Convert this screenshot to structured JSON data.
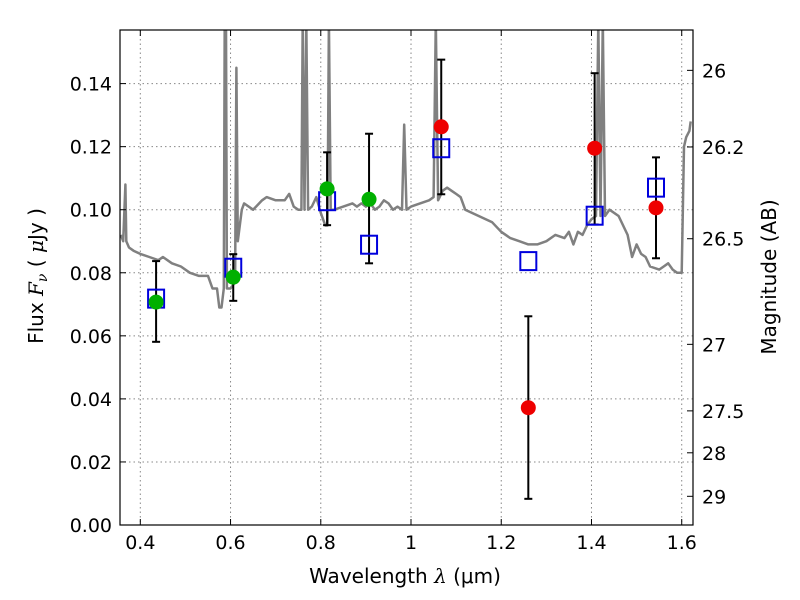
{
  "chart_data": {
    "type": "scatter",
    "title": "",
    "xlabel": "Wavelength  λ (μm)",
    "xlabel_parts": {
      "text": "Wavelength  ",
      "symbol": "λ",
      "unit": " (μm)"
    },
    "ylabel": "Flux  Fν  ( μJy )",
    "ylabel_parts": {
      "text": "Flux  ",
      "symbol": "F",
      "subscript": "ν",
      "paren_open": "  (  ",
      "mu": "μ",
      "unit": "Jy )"
    },
    "ylabel_right": "Magnitude (AB)",
    "xlim": [
      0.355,
      1.625
    ],
    "ylim": [
      0.0,
      0.157
    ],
    "grid": true,
    "x_ticks": [
      0.4,
      0.6,
      0.8,
      1.0,
      1.2,
      1.4,
      1.6
    ],
    "x_tick_labels": [
      "0.4",
      "0.6",
      "0.8",
      "1",
      "1.2",
      "1.4",
      "1.6"
    ],
    "y_ticks": [
      0.0,
      0.02,
      0.04,
      0.06,
      0.08,
      0.1,
      0.12,
      0.14
    ],
    "y_tick_labels": [
      "0.00",
      "0.02",
      "0.04",
      "0.06",
      "0.08",
      "0.10",
      "0.12",
      "0.14"
    ],
    "right_ticks": [
      {
        "flux": 0.1442,
        "label": "26"
      },
      {
        "flux": 0.1199,
        "label": "26.2"
      },
      {
        "flux": 0.0908,
        "label": "26.5"
      },
      {
        "flux": 0.0573,
        "label": "27"
      },
      {
        "flux": 0.0362,
        "label": "27.5"
      },
      {
        "flux": 0.0229,
        "label": "28"
      },
      {
        "flux": 0.0091,
        "label": "29"
      }
    ],
    "colors": {
      "model": "#808080",
      "green": "#00b000",
      "red": "#ee0000",
      "blue": "#0000dd",
      "error": "#000000",
      "grid": "#888888"
    },
    "series": [
      {
        "name": "model SED",
        "kind": "line",
        "points": [
          [
            0.357,
            0.092
          ],
          [
            0.362,
            0.09
          ],
          [
            0.367,
            0.108
          ],
          [
            0.369,
            0.09
          ],
          [
            0.375,
            0.088
          ],
          [
            0.385,
            0.087
          ],
          [
            0.4,
            0.086
          ],
          [
            0.42,
            0.085
          ],
          [
            0.44,
            0.084
          ],
          [
            0.45,
            0.085
          ],
          [
            0.47,
            0.083
          ],
          [
            0.49,
            0.082
          ],
          [
            0.51,
            0.08
          ],
          [
            0.53,
            0.079
          ],
          [
            0.55,
            0.079
          ],
          [
            0.56,
            0.075
          ],
          [
            0.57,
            0.075
          ],
          [
            0.575,
            0.069
          ],
          [
            0.58,
            0.069
          ],
          [
            0.585,
            0.075
          ],
          [
            0.587,
            0.16
          ],
          [
            0.59,
            0.16
          ],
          [
            0.592,
            0.075
          ],
          [
            0.6,
            0.075
          ],
          [
            0.61,
            0.077
          ],
          [
            0.613,
            0.145
          ],
          [
            0.616,
            0.09
          ],
          [
            0.625,
            0.1
          ],
          [
            0.63,
            0.102
          ],
          [
            0.65,
            0.1
          ],
          [
            0.67,
            0.103
          ],
          [
            0.68,
            0.104
          ],
          [
            0.7,
            0.103
          ],
          [
            0.72,
            0.103
          ],
          [
            0.73,
            0.105
          ],
          [
            0.74,
            0.101
          ],
          [
            0.75,
            0.1
          ],
          [
            0.757,
            0.1
          ],
          [
            0.76,
            0.16
          ],
          [
            0.764,
            0.1
          ],
          [
            0.768,
            0.16
          ],
          [
            0.772,
            0.1
          ],
          [
            0.78,
            0.101
          ],
          [
            0.79,
            0.104
          ],
          [
            0.8,
            0.099
          ],
          [
            0.81,
            0.095
          ],
          [
            0.815,
            0.095
          ],
          [
            0.818,
            0.16
          ],
          [
            0.822,
            0.1
          ],
          [
            0.83,
            0.1
          ],
          [
            0.85,
            0.101
          ],
          [
            0.87,
            0.102
          ],
          [
            0.88,
            0.101
          ],
          [
            0.89,
            0.102
          ],
          [
            0.9,
            0.101
          ],
          [
            0.91,
            0.102
          ],
          [
            0.92,
            0.1
          ],
          [
            0.93,
            0.101
          ],
          [
            0.94,
            0.103
          ],
          [
            0.95,
            0.102
          ],
          [
            0.96,
            0.1
          ],
          [
            0.97,
            0.101
          ],
          [
            0.98,
            0.1
          ],
          [
            0.985,
            0.127
          ],
          [
            0.99,
            0.1
          ],
          [
            1.0,
            0.101
          ],
          [
            1.02,
            0.102
          ],
          [
            1.04,
            0.103
          ],
          [
            1.05,
            0.104
          ],
          [
            1.055,
            0.16
          ],
          [
            1.06,
            0.103
          ],
          [
            1.07,
            0.106
          ],
          [
            1.08,
            0.107
          ],
          [
            1.09,
            0.106
          ],
          [
            1.1,
            0.105
          ],
          [
            1.11,
            0.104
          ],
          [
            1.12,
            0.1
          ],
          [
            1.15,
            0.098
          ],
          [
            1.18,
            0.096
          ],
          [
            1.2,
            0.093
          ],
          [
            1.22,
            0.091
          ],
          [
            1.24,
            0.09
          ],
          [
            1.26,
            0.089
          ],
          [
            1.28,
            0.089
          ],
          [
            1.3,
            0.09
          ],
          [
            1.32,
            0.092
          ],
          [
            1.34,
            0.091
          ],
          [
            1.35,
            0.093
          ],
          [
            1.36,
            0.089
          ],
          [
            1.37,
            0.093
          ],
          [
            1.38,
            0.092
          ],
          [
            1.39,
            0.095
          ],
          [
            1.4,
            0.097
          ],
          [
            1.41,
            0.098
          ],
          [
            1.415,
            0.16
          ],
          [
            1.42,
            0.098
          ],
          [
            1.425,
            0.16
          ],
          [
            1.43,
            0.098
          ],
          [
            1.44,
            0.1
          ],
          [
            1.46,
            0.098
          ],
          [
            1.48,
            0.092
          ],
          [
            1.49,
            0.085
          ],
          [
            1.5,
            0.089
          ],
          [
            1.51,
            0.086
          ],
          [
            1.52,
            0.085
          ],
          [
            1.53,
            0.082
          ],
          [
            1.55,
            0.081
          ],
          [
            1.56,
            0.082
          ],
          [
            1.57,
            0.083
          ],
          [
            1.58,
            0.081
          ],
          [
            1.59,
            0.08
          ],
          [
            1.6,
            0.08
          ],
          [
            1.605,
            0.12
          ],
          [
            1.61,
            0.123
          ],
          [
            1.617,
            0.125
          ],
          [
            1.62,
            0.128
          ]
        ]
      },
      {
        "name": "green circles",
        "kind": "circle",
        "color": "green",
        "points": [
          [
            0.435,
            0.0707
          ],
          [
            0.606,
            0.0786
          ],
          [
            0.814,
            0.1066
          ],
          [
            0.907,
            0.1033
          ]
        ]
      },
      {
        "name": "red circles",
        "kind": "circle",
        "color": "red",
        "points": [
          [
            1.067,
            0.1263
          ],
          [
            1.26,
            0.0372
          ],
          [
            1.407,
            0.1195
          ],
          [
            1.543,
            0.1006
          ]
        ]
      },
      {
        "name": "blue squares",
        "kind": "square",
        "color": "blue",
        "points": [
          [
            0.435,
            0.0718
          ],
          [
            0.606,
            0.0816
          ],
          [
            0.814,
            0.1027
          ],
          [
            0.907,
            0.0889
          ],
          [
            1.067,
            0.1195
          ],
          [
            1.26,
            0.0837
          ],
          [
            1.407,
            0.0981
          ],
          [
            1.543,
            0.107
          ]
        ]
      },
      {
        "name": "error bars",
        "kind": "errorbar",
        "bars": [
          [
            0.435,
            0.0581,
            0.0837
          ],
          [
            0.606,
            0.0711,
            0.0859
          ],
          [
            0.814,
            0.0951,
            0.1182
          ],
          [
            0.907,
            0.083,
            0.1241
          ],
          [
            1.067,
            0.1049,
            0.1476
          ],
          [
            1.26,
            0.0083,
            0.0662
          ],
          [
            1.407,
            0.0953,
            0.1433
          ],
          [
            1.543,
            0.0846,
            0.1166
          ]
        ]
      }
    ]
  }
}
